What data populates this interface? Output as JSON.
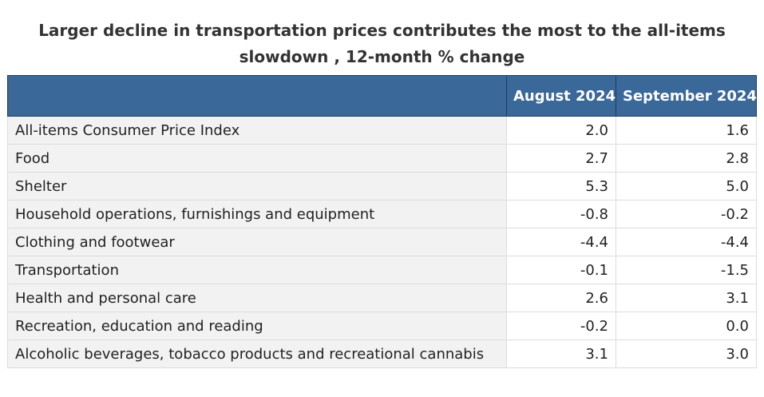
{
  "chart_data": {
    "type": "table",
    "title_line1": "Larger decline in transportation prices contributes the most to the all-items",
    "title_line2": "slowdown , 12-month % change",
    "columns": [
      "",
      "August 2024",
      "September 2024"
    ],
    "rows": [
      {
        "label": "All-items Consumer Price Index",
        "aug": "2.0",
        "sep": "1.6"
      },
      {
        "label": "Food",
        "aug": "2.7",
        "sep": "2.8"
      },
      {
        "label": "Shelter",
        "aug": "5.3",
        "sep": "5.0"
      },
      {
        "label": "Household operations, furnishings and equipment",
        "aug": "-0.8",
        "sep": "-0.2"
      },
      {
        "label": "Clothing and footwear",
        "aug": "-4.4",
        "sep": "-4.4"
      },
      {
        "label": "Transportation",
        "aug": "-0.1",
        "sep": "-1.5"
      },
      {
        "label": "Health and personal care",
        "aug": "2.6",
        "sep": "3.1"
      },
      {
        "label": "Recreation, education and reading",
        "aug": "-0.2",
        "sep": "0.0"
      },
      {
        "label": "Alcoholic beverages, tobacco products and recreational cannabis",
        "aug": "3.1",
        "sep": "3.0"
      }
    ],
    "colors": {
      "header_bg": "#3a6898",
      "header_text": "#ffffff",
      "label_bg": "#f2f2f2"
    }
  }
}
